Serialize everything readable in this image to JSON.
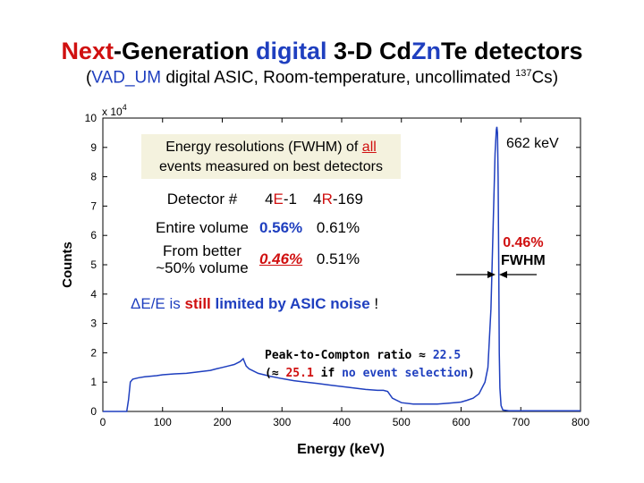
{
  "title": {
    "part1": "Next",
    "part2": "-Generation ",
    "part3": "digital",
    "part4": " 3-D Cd",
    "part5": "Zn",
    "part6": "Te detectors"
  },
  "subtitle": {
    "open": "(",
    "vad": "VAD_UM",
    "rest": " digital ASIC, Room-temperature, uncollimated ",
    "iso_mass": "137",
    "iso": "Cs",
    "close": ")"
  },
  "chart_data": {
    "type": "line",
    "xlabel": "Energy (keV)",
    "ylabel": "Counts",
    "y_multiplier": "x 10",
    "y_multiplier_exp": "4",
    "xlim": [
      0,
      800
    ],
    "ylim": [
      0,
      10
    ],
    "xticks": [
      0,
      100,
      200,
      300,
      400,
      500,
      600,
      700,
      800
    ],
    "yticks": [
      0,
      1,
      2,
      3,
      4,
      5,
      6,
      7,
      8,
      9,
      10
    ],
    "series": [
      {
        "name": "Cs-137 spectrum",
        "color": "#1f3fbf",
        "x": [
          0,
          40,
          43,
          46,
          50,
          60,
          70,
          80,
          90,
          100,
          120,
          140,
          160,
          180,
          190,
          200,
          210,
          220,
          230,
          235,
          240,
          245,
          250,
          260,
          280,
          300,
          320,
          340,
          360,
          380,
          400,
          420,
          440,
          460,
          470,
          477,
          485,
          500,
          520,
          540,
          560,
          580,
          600,
          610,
          620,
          630,
          640,
          645,
          650,
          654,
          657,
          659,
          660,
          661,
          662,
          663,
          664,
          665,
          667,
          670,
          680,
          700,
          720,
          740,
          760,
          780,
          800
        ],
        "y": [
          0,
          0,
          0.4,
          1.0,
          1.1,
          1.15,
          1.18,
          1.2,
          1.22,
          1.25,
          1.28,
          1.3,
          1.35,
          1.4,
          1.45,
          1.5,
          1.55,
          1.6,
          1.7,
          1.8,
          1.55,
          1.45,
          1.4,
          1.3,
          1.2,
          1.12,
          1.05,
          1.0,
          0.95,
          0.9,
          0.85,
          0.8,
          0.75,
          0.72,
          0.72,
          0.68,
          0.45,
          0.3,
          0.25,
          0.25,
          0.25,
          0.28,
          0.32,
          0.38,
          0.45,
          0.6,
          1.0,
          1.5,
          3.5,
          6.5,
          8.8,
          9.6,
          9.7,
          9.5,
          8.0,
          5.0,
          2.0,
          0.8,
          0.2,
          0.05,
          0.02,
          0.02,
          0.02,
          0.02,
          0.02,
          0.02,
          0.02
        ]
      }
    ],
    "annotations": {
      "peak": "662 keV",
      "fwhm_value": "0.46%",
      "fwhm_label": "FWHM"
    }
  },
  "energy_box": {
    "line1_pre": "Energy resolutions (FWHM) of ",
    "line1_all": "all",
    "line2": "events measured on best detectors"
  },
  "table": {
    "header": {
      "col0": "Detector #",
      "col1_pre": "4",
      "col1_mid": "E",
      "col1_post": "-1",
      "col2_pre": "4",
      "col2_mid": "R",
      "col2_post": "-169"
    },
    "row1": {
      "label": "Entire volume",
      "v1": "0.56%",
      "v2": "0.61%"
    },
    "row2": {
      "label_line1": "From better",
      "label_line2": "~50% volume",
      "v1": "0.46%",
      "v2": "0.51%"
    }
  },
  "asic_note": {
    "delta": "ΔE/E is ",
    "still": "still",
    "rest": " limited by ASIC noise",
    "end": " !"
  },
  "ptc": {
    "line1_pre": "Peak-to-Compton ratio ≈ ",
    "line1_val": "22.5",
    "line2_open": "(≈ ",
    "line2_val": "25.1",
    "line2_mid": " if ",
    "line2_sel": "no event selection",
    "line2_close": ")"
  }
}
